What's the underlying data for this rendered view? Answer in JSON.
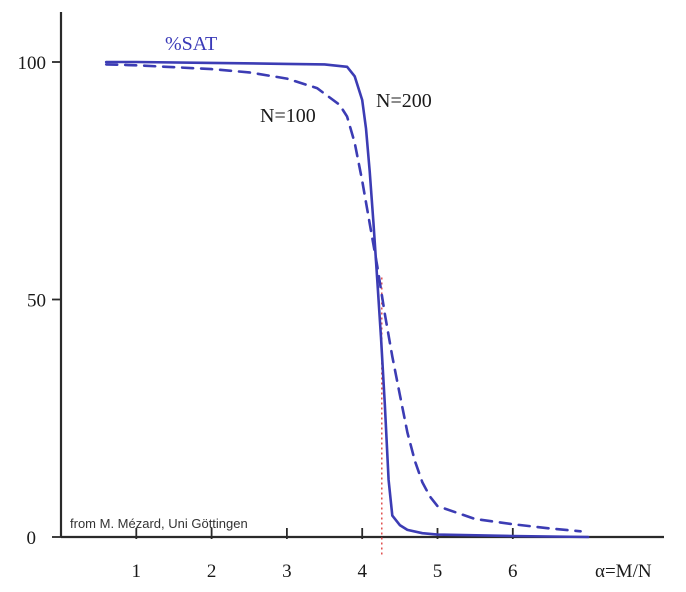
{
  "chart_data": {
    "type": "line",
    "title": "",
    "ylabel": "%SAT",
    "xlabel": "α=M/N",
    "credit": "from M. Mézard, Uni Göttingen",
    "xlim": [
      0,
      7
    ],
    "ylim": [
      0,
      100
    ],
    "x_ticks": [
      1,
      2,
      3,
      4,
      5,
      6
    ],
    "y_ticks": [
      0,
      50,
      100
    ],
    "threshold_x": 4.26,
    "grid": false,
    "colors": {
      "axis": "#2a2a2a",
      "series": "#3c3cb4",
      "threshold": "#e05050"
    },
    "series": [
      {
        "name": "N=100",
        "style": "dashed",
        "x": [
          0.6,
          1.0,
          2.0,
          2.5,
          3.0,
          3.4,
          3.7,
          3.8,
          3.9,
          4.0,
          4.1,
          4.2,
          4.3,
          4.4,
          4.5,
          4.6,
          4.7,
          4.8,
          4.9,
          5.0,
          5.5,
          6.0,
          6.5,
          6.9
        ],
        "values": [
          99.5,
          99.3,
          98.5,
          97.8,
          96.5,
          94.5,
          91.0,
          88.5,
          83.0,
          75.0,
          66.0,
          57.0,
          47.0,
          38.0,
          30.0,
          22.0,
          16.0,
          11.5,
          8.5,
          6.5,
          3.8,
          2.7,
          1.8,
          1.2
        ]
      },
      {
        "name": "N=200",
        "style": "solid",
        "x": [
          0.6,
          1.0,
          2.0,
          3.0,
          3.5,
          3.8,
          3.9,
          4.0,
          4.05,
          4.1,
          4.15,
          4.2,
          4.25,
          4.3,
          4.35,
          4.4,
          4.5,
          4.6,
          4.8,
          5.0,
          6.0,
          7.0
        ],
        "values": [
          100,
          100,
          99.8,
          99.6,
          99.5,
          99.0,
          97.0,
          92.0,
          86.0,
          77.0,
          66.0,
          54.0,
          42.0,
          28.0,
          12.0,
          4.5,
          2.5,
          1.5,
          0.8,
          0.5,
          0.2,
          0.0
        ]
      }
    ],
    "series_labels": {
      "n100": "N=100",
      "n200": "N=200"
    },
    "y_tick_labels": [
      "0",
      "50",
      "100"
    ],
    "x_tick_labels": [
      "1",
      "2",
      "3",
      "4",
      "5",
      "6"
    ]
  }
}
